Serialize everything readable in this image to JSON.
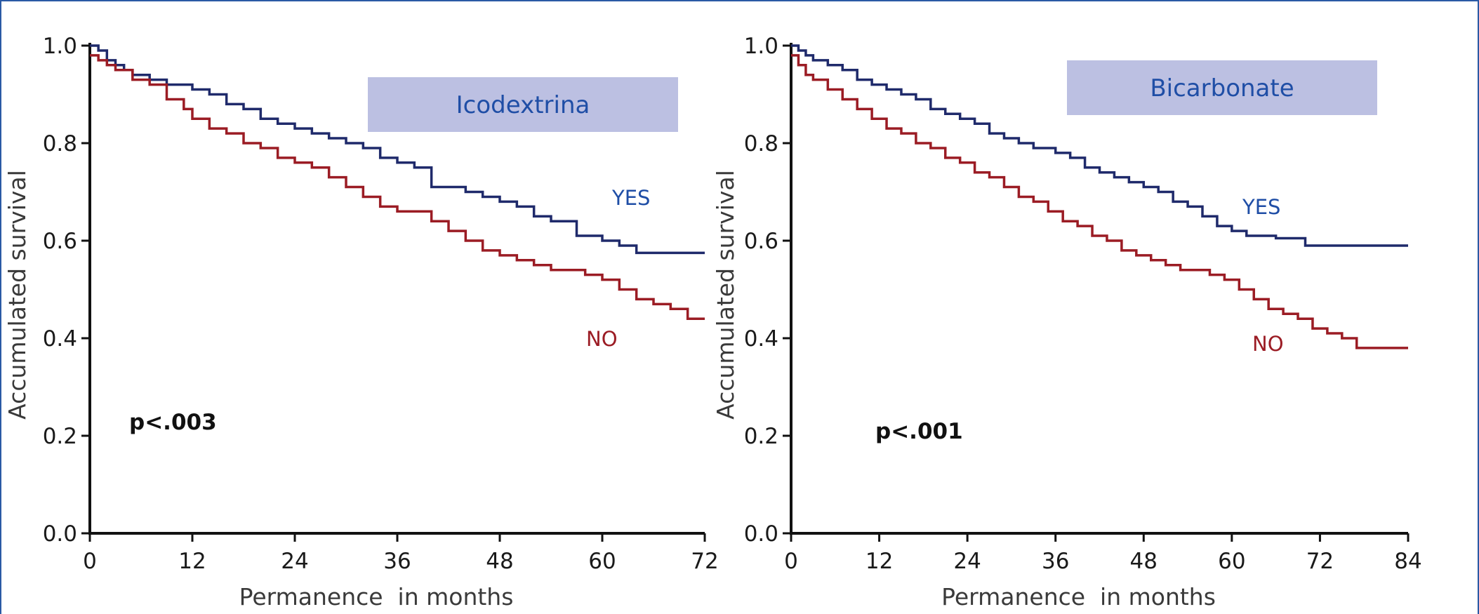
{
  "chart_data": [
    {
      "type": "line",
      "subtype": "kaplan-meier step",
      "title": "Icodextrina",
      "xlabel": "Permanence  in months",
      "ylabel": "Accumulated survival",
      "annotation": "p<.003",
      "xlim": [
        0,
        72
      ],
      "ylim": [
        0,
        1.0
      ],
      "xticks": [
        0,
        12,
        24,
        36,
        48,
        60,
        72
      ],
      "yticks": [
        "0.0",
        "0.2",
        "0.4",
        "0.6",
        "0.8",
        "1.0"
      ],
      "series": [
        {
          "name": "YES",
          "color": "#1f2a6b",
          "x": [
            0,
            1,
            2,
            3,
            4,
            5,
            7,
            9,
            12,
            14,
            16,
            18,
            20,
            22,
            24,
            26,
            28,
            30,
            32,
            34,
            36,
            38,
            40,
            44,
            46,
            48,
            50,
            52,
            54,
            57,
            60,
            62,
            64,
            72
          ],
          "y": [
            1.0,
            0.99,
            0.97,
            0.96,
            0.95,
            0.94,
            0.93,
            0.92,
            0.91,
            0.9,
            0.88,
            0.87,
            0.85,
            0.84,
            0.83,
            0.82,
            0.81,
            0.8,
            0.79,
            0.77,
            0.76,
            0.75,
            0.71,
            0.7,
            0.69,
            0.68,
            0.67,
            0.65,
            0.64,
            0.61,
            0.6,
            0.59,
            0.575,
            0.575
          ]
        },
        {
          "name": "NO",
          "color": "#9b1c24",
          "x": [
            0,
            1,
            2,
            3,
            5,
            7,
            9,
            11,
            12,
            14,
            16,
            18,
            20,
            22,
            24,
            26,
            28,
            30,
            32,
            34,
            36,
            40,
            42,
            44,
            46,
            48,
            50,
            52,
            54,
            58,
            60,
            62,
            64,
            66,
            68,
            70,
            72
          ],
          "y": [
            0.98,
            0.97,
            0.96,
            0.95,
            0.93,
            0.92,
            0.89,
            0.87,
            0.85,
            0.83,
            0.82,
            0.8,
            0.79,
            0.77,
            0.76,
            0.75,
            0.73,
            0.71,
            0.69,
            0.67,
            0.66,
            0.64,
            0.62,
            0.6,
            0.58,
            0.57,
            0.56,
            0.55,
            0.54,
            0.53,
            0.52,
            0.5,
            0.48,
            0.47,
            0.46,
            0.44,
            0.44
          ]
        }
      ]
    },
    {
      "type": "line",
      "subtype": "kaplan-meier step",
      "title": "Bicarbonate",
      "xlabel": "Permanence  in months",
      "ylabel": "Accumulated survival",
      "annotation": "p<.001",
      "xlim": [
        0,
        84
      ],
      "ylim": [
        0,
        1.0
      ],
      "xticks": [
        0,
        12,
        24,
        36,
        48,
        60,
        72,
        84
      ],
      "yticks": [
        "0.0",
        "0.2",
        "0.4",
        "0.6",
        "0.8",
        "1.0"
      ],
      "series": [
        {
          "name": "YES",
          "color": "#1f2a6b",
          "x": [
            0,
            1,
            2,
            3,
            5,
            7,
            9,
            11,
            13,
            15,
            17,
            19,
            21,
            23,
            25,
            27,
            29,
            31,
            33,
            36,
            38,
            40,
            42,
            44,
            46,
            48,
            50,
            52,
            54,
            56,
            58,
            60,
            62,
            66,
            70,
            84
          ],
          "y": [
            1.0,
            0.99,
            0.98,
            0.97,
            0.96,
            0.95,
            0.93,
            0.92,
            0.91,
            0.9,
            0.89,
            0.87,
            0.86,
            0.85,
            0.84,
            0.82,
            0.81,
            0.8,
            0.79,
            0.78,
            0.77,
            0.75,
            0.74,
            0.73,
            0.72,
            0.71,
            0.7,
            0.68,
            0.67,
            0.65,
            0.63,
            0.62,
            0.61,
            0.605,
            0.59,
            0.59
          ]
        },
        {
          "name": "NO",
          "color": "#9b1c24",
          "x": [
            0,
            1,
            2,
            3,
            5,
            7,
            9,
            11,
            13,
            15,
            17,
            19,
            21,
            23,
            25,
            27,
            29,
            31,
            33,
            35,
            37,
            39,
            41,
            43,
            45,
            47,
            49,
            51,
            53,
            55,
            57,
            59,
            61,
            63,
            65,
            67,
            69,
            71,
            73,
            75,
            77,
            84
          ],
          "y": [
            0.98,
            0.96,
            0.94,
            0.93,
            0.91,
            0.89,
            0.87,
            0.85,
            0.83,
            0.82,
            0.8,
            0.79,
            0.77,
            0.76,
            0.74,
            0.73,
            0.71,
            0.69,
            0.68,
            0.66,
            0.64,
            0.63,
            0.61,
            0.6,
            0.58,
            0.57,
            0.56,
            0.55,
            0.54,
            0.54,
            0.53,
            0.52,
            0.5,
            0.48,
            0.46,
            0.45,
            0.44,
            0.42,
            0.41,
            0.4,
            0.38,
            0.38
          ]
        }
      ]
    }
  ]
}
